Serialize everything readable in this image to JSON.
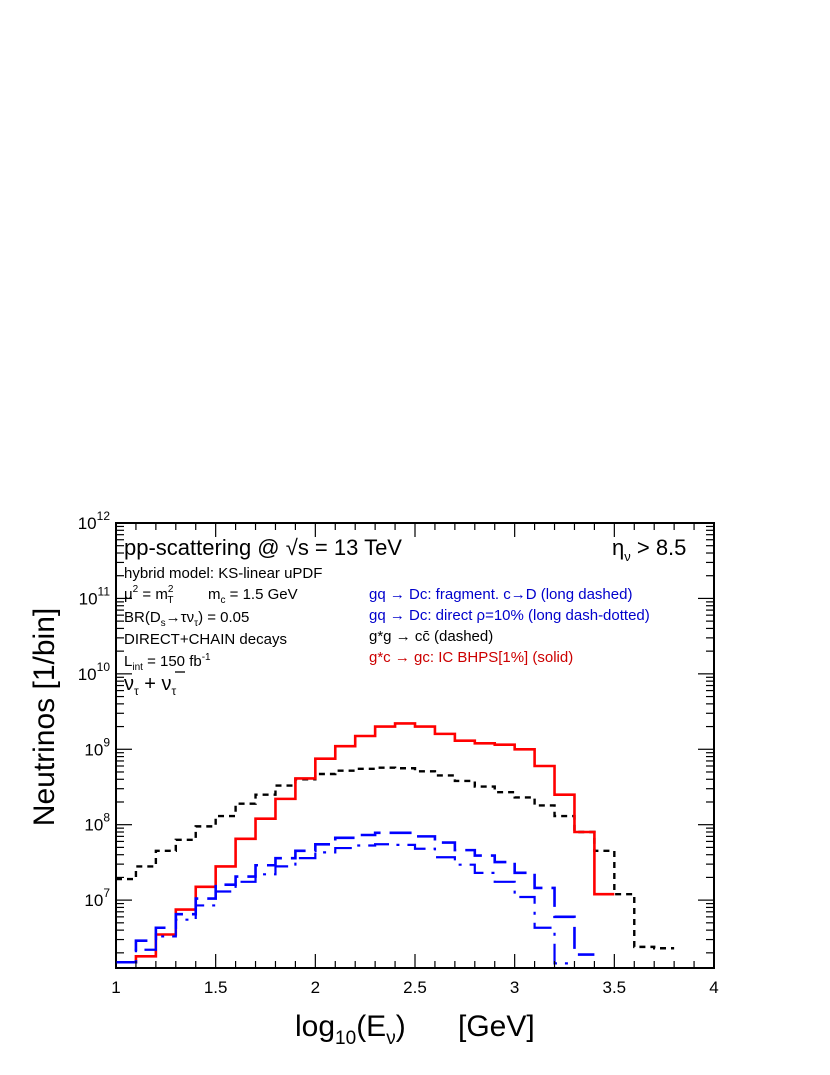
{
  "chart_data": {
    "type": "line",
    "step": true,
    "log_y": true,
    "xlim": [
      1,
      4
    ],
    "ylim_exp": [
      6.1,
      12
    ],
    "x_ticks": [
      "1",
      "1.5",
      "2",
      "2.5",
      "3",
      "3.5",
      "4"
    ],
    "y_ticks": [
      {
        "exp": 7,
        "base": "10",
        "sup": "7"
      },
      {
        "exp": 8,
        "base": "10",
        "sup": "8"
      },
      {
        "exp": 9,
        "base": "10",
        "sup": "9"
      },
      {
        "exp": 10,
        "base": "10",
        "sup": "10"
      },
      {
        "exp": 11,
        "base": "10",
        "sup": "11"
      },
      {
        "exp": 12,
        "base": "10",
        "sup": "12"
      }
    ],
    "xlabel": {
      "main": "log",
      "sub": "10",
      "paren_open": "(E",
      "nu": "ν",
      "paren_close": ")",
      "unit": "[GeV]"
    },
    "ylabel": "Neutrinos [1/bin]",
    "bin_width": 0.1,
    "series": [
      {
        "name": "g*g → cc̄ (dashed)",
        "color": "#000000",
        "style": "dashed",
        "x_start": 1.0,
        "values": [
          19000000.0,
          28000000.0,
          45000000.0,
          63000000.0,
          95000000.0,
          130000000.0,
          190000000.0,
          250000000.0,
          330000000.0,
          400000000.0,
          470000000.0,
          520000000.0,
          550000000.0,
          570000000.0,
          560000000.0,
          510000000.0,
          450000000.0,
          380000000.0,
          320000000.0,
          270000000.0,
          230000000.0,
          180000000.0,
          130000000.0,
          80000000.0,
          45000000.0,
          12000000.0,
          2400000.0,
          2300000.0
        ]
      },
      {
        "name": "g*c → gc: IC BHPS[1%] (solid)",
        "color": "#ff0000",
        "style": "solid",
        "x_start": 1.0,
        "values": [
          1500000.0,
          1800000.0,
          3500000.0,
          7500000.0,
          15000000.0,
          28000000.0,
          65000000.0,
          120000000.0,
          220000000.0,
          410000000.0,
          750000000.0,
          1100000000.0,
          1500000000.0,
          2000000000.0,
          2200000000.0,
          2000000000.0,
          1600000000.0,
          1300000000.0,
          1200000000.0,
          1150000000.0,
          1000000000.0,
          600000000.0,
          250000000.0,
          80000000.0,
          12000000.0
        ]
      },
      {
        "name": "gq → Dc: fragment. c→D (long dashed)",
        "color": "#0000ff",
        "style": "longdash",
        "x_start": 1.0,
        "values": [
          1500000.0,
          2900000.0,
          4300000.0,
          6500000.0,
          10500000.0,
          16000000.0,
          20500000.0,
          29000000.0,
          36000000.0,
          45000000.0,
          55000000.0,
          67000000.0,
          73000000.0,
          78000000.0,
          78000000.0,
          70000000.0,
          58000000.0,
          46000000.0,
          39000000.0,
          32000000.0,
          23000000.0,
          14500000.0,
          6000000.0,
          1900000.0
        ]
      },
      {
        "name": "gq → Dc: direct ρ=10% (long dash-dotted)",
        "color": "#0000ff",
        "style": "longdashdot",
        "x_start": 1.0,
        "values": [
          1500000.0,
          2200000.0,
          3300000.0,
          5500000.0,
          8500000.0,
          13000000.0,
          17500000.0,
          22000000.0,
          28000000.0,
          36000000.0,
          43000000.0,
          49000000.0,
          53000000.0,
          55000000.0,
          54000000.0,
          48000000.0,
          37000000.0,
          29500000.0,
          23000000.0,
          17500000.0,
          11000000.0,
          4300000.0,
          1450000.0
        ]
      }
    ]
  },
  "annotations": {
    "title": {
      "pre": "pp-scattering @ ",
      "root_sym": "√",
      "s": "s",
      "post": " = 13 TeV"
    },
    "eta_cut": {
      "eta": "η",
      "sub": "ν",
      "post": " > 8.5"
    },
    "model": "hybrid model: KS-linear uPDF",
    "scale": {
      "mu": "μ",
      "sup2": "2",
      "eq": " = m",
      "sup": "2",
      "sub": "T"
    },
    "mass": {
      "m": "m",
      "sub": "c",
      "post": " = 1.5 GeV"
    },
    "br": {
      "pre": "BR(D",
      "sub_s": "s",
      "arrow": "→τν",
      "sub_tau": "τ",
      "post": ") = 0.05"
    },
    "decays": "DIRECT+CHAIN decays",
    "lumi": {
      "L": "L",
      "sub": "int",
      "mid": " = 150 fb",
      "sup": "-1"
    },
    "nu": {
      "nu": "ν",
      "sub": "τ",
      "plus": " + ",
      "nubar": "ν",
      "sub2": "τ"
    }
  },
  "legend": {
    "entries": [
      {
        "text": "gq → Dc: fragment. c→D (long dashed)",
        "color": "#0000ff"
      },
      {
        "text": "gq → Dc: direct ρ=10% (long dash-dotted)",
        "color": "#0000ff"
      },
      {
        "text": "g*g → cc̄ (dashed)",
        "color": "#000000"
      },
      {
        "text": "g*c → gc: IC BHPS[1%] (solid)",
        "color": "#cc0000"
      }
    ]
  }
}
